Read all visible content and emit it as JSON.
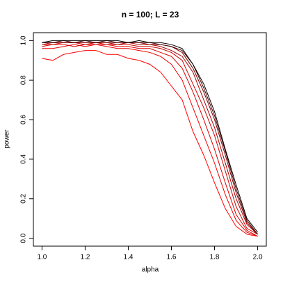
{
  "chart_data": {
    "type": "line",
    "title": "n = 100; L = 23",
    "x_label": "alpha",
    "y_label": "power",
    "x": [
      1.0,
      1.05,
      1.1,
      1.15,
      1.2,
      1.25,
      1.3,
      1.35,
      1.4,
      1.45,
      1.5,
      1.55,
      1.6,
      1.65,
      1.7,
      1.75,
      1.8,
      1.85,
      1.9,
      1.95,
      2.0
    ],
    "series": [
      {
        "color": "#ff0000",
        "values": [
          0.91,
          0.9,
          0.93,
          0.94,
          0.95,
          0.95,
          0.93,
          0.93,
          0.91,
          0.9,
          0.88,
          0.84,
          0.77,
          0.7,
          0.54,
          0.42,
          0.28,
          0.15,
          0.06,
          0.02,
          0.01
        ]
      },
      {
        "color": "#ee0000",
        "values": [
          0.96,
          0.96,
          0.97,
          0.98,
          0.97,
          0.98,
          0.97,
          0.96,
          0.96,
          0.95,
          0.94,
          0.92,
          0.88,
          0.8,
          0.66,
          0.52,
          0.38,
          0.22,
          0.09,
          0.03,
          0.01
        ]
      },
      {
        "color": "#dd0000",
        "values": [
          0.97,
          0.98,
          0.98,
          0.97,
          0.98,
          0.98,
          0.98,
          0.97,
          0.97,
          0.96,
          0.96,
          0.94,
          0.92,
          0.86,
          0.74,
          0.6,
          0.45,
          0.28,
          0.12,
          0.04,
          0.01
        ]
      },
      {
        "color": "#cc0000",
        "values": [
          0.98,
          0.98,
          0.99,
          0.99,
          0.98,
          0.99,
          0.98,
          0.98,
          0.98,
          0.97,
          0.97,
          0.96,
          0.94,
          0.9,
          0.78,
          0.66,
          0.52,
          0.34,
          0.16,
          0.05,
          0.02
        ]
      },
      {
        "color": "#aa0000",
        "values": [
          0.98,
          0.99,
          0.99,
          0.99,
          0.99,
          0.99,
          0.99,
          0.98,
          0.99,
          0.98,
          0.98,
          0.97,
          0.95,
          0.92,
          0.84,
          0.7,
          0.56,
          0.38,
          0.2,
          0.07,
          0.02
        ]
      },
      {
        "color": "#770000",
        "values": [
          0.99,
          0.99,
          0.99,
          0.99,
          0.99,
          0.99,
          0.99,
          0.99,
          0.99,
          0.99,
          0.98,
          0.98,
          0.97,
          0.94,
          0.86,
          0.74,
          0.6,
          0.42,
          0.23,
          0.08,
          0.02
        ]
      },
      {
        "color": "#440000",
        "values": [
          0.99,
          0.99,
          1.0,
          0.99,
          1.0,
          0.99,
          1.0,
          0.99,
          0.99,
          0.99,
          0.99,
          0.98,
          0.97,
          0.95,
          0.88,
          0.76,
          0.62,
          0.44,
          0.25,
          0.09,
          0.02
        ]
      },
      {
        "color": "#000000",
        "values": [
          0.99,
          1.0,
          1.0,
          1.0,
          1.0,
          1.0,
          1.0,
          1.0,
          0.99,
          1.0,
          0.99,
          0.99,
          0.98,
          0.96,
          0.88,
          0.78,
          0.64,
          0.45,
          0.27,
          0.1,
          0.03
        ]
      }
    ],
    "xlim": [
      0.96,
      2.04
    ],
    "ylim": [
      -0.04,
      1.04
    ],
    "xticks": [
      {
        "value": 1,
        "label": "1.0"
      },
      1.2,
      1.4,
      1.6,
      1.8,
      {
        "value": 2,
        "label": "2.0"
      }
    ],
    "yticks": [
      {
        "value": 0,
        "label": "0.0"
      },
      0.2,
      0.4,
      0.6,
      0.8,
      {
        "value": 1,
        "label": "1.0"
      }
    ]
  }
}
